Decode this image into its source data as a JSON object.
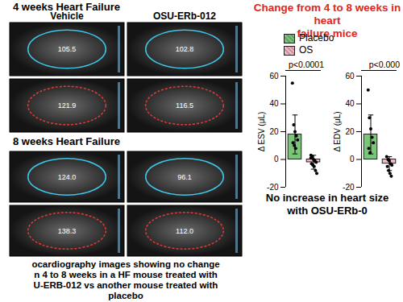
{
  "images": {
    "panels": [
      {
        "title": "4 weeks Heart Failure",
        "columns": [
          "Vehicle",
          "OSU-ERb-012"
        ],
        "labels": [
          [
            "105.5",
            "102.8"
          ],
          [
            "121.9",
            "116.5"
          ]
        ]
      },
      {
        "title": "8 weeks Heart Failure",
        "labels": [
          [
            "124.0",
            "96.1"
          ],
          [
            "138.3",
            "112.0"
          ]
        ]
      }
    ],
    "caption": [
      "ocardiography images showing no change",
      "n 4 to 8 weeks in a HF mouse treated with",
      "U-ERB-012 vs another mouse treated with",
      "placebo"
    ]
  },
  "panel_title": [
    "Change from 4 to 8 weeks in heart",
    "failure mice"
  ],
  "panel_caption": [
    "No increase in heart size",
    "with OSU-ERb-0"
  ],
  "chart_data": [
    {
      "type": "bar",
      "ylabel": "Δ ESV (μL)",
      "ylim": [
        -20,
        60
      ],
      "yticks": [
        -20,
        0,
        20,
        40,
        60
      ],
      "tick_labels": "y",
      "legend": "top",
      "annotations": [
        "p<0.0001"
      ],
      "series": [
        {
          "name": "Placebo",
          "color": "#7cc47a",
          "values": [
            18
          ],
          "error": [
            14
          ],
          "points": [
            55,
            25,
            20,
            17,
            14,
            12,
            10,
            8
          ]
        },
        {
          "name": "OS",
          "color": "#f2b8c3",
          "values": [
            -2
          ],
          "error": [
            5
          ],
          "points": [
            3,
            2,
            0,
            -1,
            -2,
            -3,
            -4,
            -5,
            -8,
            -10,
            1
          ]
        }
      ]
    },
    {
      "type": "bar",
      "ylabel": "Δ EDV (μL)",
      "ylim": [
        -20,
        60
      ],
      "yticks": [
        -20,
        0,
        20,
        40,
        60
      ],
      "tick_labels": "y",
      "annotations": [
        "p<0.000"
      ],
      "series": [
        {
          "color": "#7cc47a",
          "values": [
            18
          ],
          "error": [
            14
          ],
          "points": [
            50,
            30,
            22,
            16,
            12,
            8,
            5
          ]
        },
        {
          "color": "#f2b8c3",
          "values": [
            -3
          ],
          "error": [
            5
          ],
          "points": [
            2,
            0,
            -1,
            -3,
            -4,
            -5,
            -8,
            -10,
            -12
          ]
        }
      ]
    }
  ]
}
